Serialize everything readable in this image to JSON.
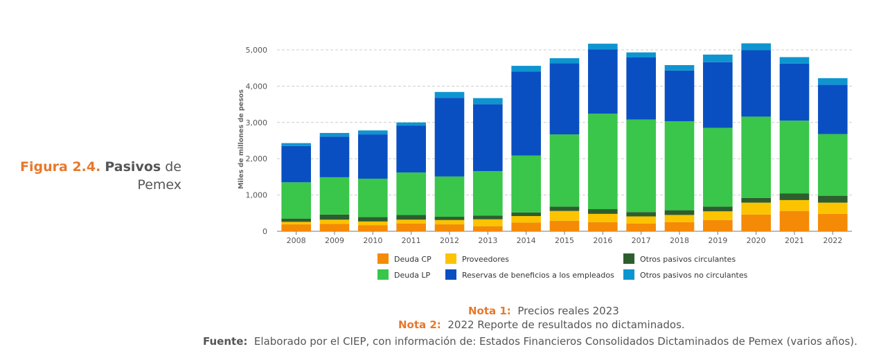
{
  "figure": {
    "label": "Figura 2.4.",
    "title_bold": "Pasivos",
    "title_rest": " de",
    "title_line2": "Pemex"
  },
  "notes": {
    "nota1_label": "Nota 1:",
    "nota1_text": "Precios reales 2023",
    "nota2_label": "Nota 2:",
    "nota2_text": "2022 Reporte de resultados no dictaminados.",
    "fuente_label": "Fuente:",
    "fuente_text": "Elaborado por el CIEP, con información de: Estados Financieros Consolidados Dictaminados de Pemex (varios años)."
  },
  "chart_data": {
    "type": "bar",
    "stacked": true,
    "title": "",
    "xlabel": "",
    "ylabel": "Miles de millones de pesos",
    "ylim": [
      0,
      5000
    ],
    "yticks": [
      0,
      1000,
      2000,
      3000,
      4000,
      5000
    ],
    "ytick_labels": [
      "0",
      "1,000",
      "2,000",
      "3,000",
      "4,000",
      "5,000"
    ],
    "grid": true,
    "legend_position": "bottom",
    "categories": [
      "2008",
      "2009",
      "2010",
      "2011",
      "2012",
      "2013",
      "2014",
      "2015",
      "2016",
      "2017",
      "2018",
      "2019",
      "2020",
      "2021",
      "2022"
    ],
    "series": [
      {
        "name": "Deuda CP",
        "color": "#f58a07",
        "values": [
          190,
          200,
          170,
          210,
          190,
          140,
          240,
          290,
          250,
          210,
          250,
          310,
          460,
          560,
          480
        ]
      },
      {
        "name": "Proveedores",
        "color": "#fcc300",
        "values": [
          70,
          120,
          100,
          110,
          120,
          190,
          180,
          270,
          230,
          200,
          200,
          240,
          330,
          300,
          310
        ]
      },
      {
        "name": "Otros pasivos circulantes",
        "color": "#2d5e2e",
        "values": [
          90,
          140,
          120,
          130,
          90,
          100,
          100,
          120,
          130,
          120,
          130,
          130,
          130,
          180,
          190
        ]
      },
      {
        "name": "Deuda LP",
        "color": "#39c64a",
        "values": [
          1000,
          1030,
          1060,
          1170,
          1110,
          1230,
          1570,
          1990,
          2630,
          2550,
          2450,
          2170,
          2240,
          2010,
          1700
        ]
      },
      {
        "name": "Reservas de beneficios a los empleados",
        "color": "#0a4fc2",
        "values": [
          1000,
          1120,
          1220,
          1290,
          2170,
          1840,
          2310,
          1960,
          1770,
          1710,
          1400,
          1810,
          1830,
          1570,
          1360
        ]
      },
      {
        "name": "Otros pasivos no circulantes",
        "color": "#0e95d0",
        "values": [
          80,
          100,
          110,
          90,
          160,
          170,
          160,
          140,
          160,
          140,
          150,
          210,
          190,
          180,
          180
        ]
      }
    ]
  }
}
